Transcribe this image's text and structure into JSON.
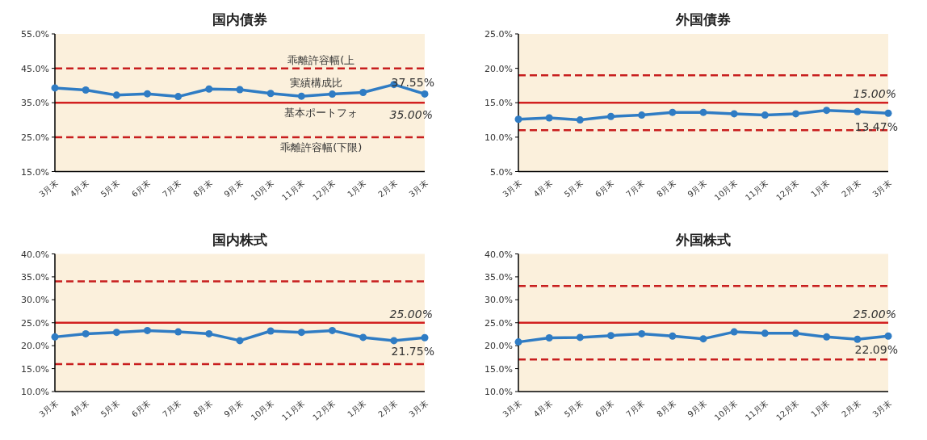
{
  "chart_data": [
    {
      "type": "line",
      "title": "国内債券",
      "categories": [
        "3月末",
        "4月末",
        "5月末",
        "6月末",
        "7月末",
        "8月末",
        "9月末",
        "10月末",
        "11月末",
        "12月末",
        "1月末",
        "2月末",
        "3月末"
      ],
      "series": [
        {
          "name": "実績構成比",
          "color": "#2f7cc4",
          "values": [
            39.3,
            38.7,
            37.2,
            37.6,
            36.8,
            39.0,
            38.8,
            37.7,
            36.9,
            37.5,
            38.0,
            40.3,
            37.55
          ],
          "value_labels": [
            null,
            null,
            null,
            null,
            null,
            null,
            null,
            null,
            null,
            null,
            null,
            null,
            "37.55%"
          ]
        }
      ],
      "ylim": [
        15,
        55
      ],
      "yticks": [
        {
          "value": 15,
          "label": "15.0%"
        },
        {
          "value": 25,
          "label": "25.0%"
        },
        {
          "value": 35,
          "label": "35.0%"
        },
        {
          "value": 45,
          "label": "45.0%"
        },
        {
          "value": 55,
          "label": "55.0%"
        }
      ],
      "ref_lines": [
        {
          "axis": "y",
          "value": 45,
          "label": "乖離許容幅(上",
          "color": "#c81e1e",
          "line_style": "dashed"
        },
        {
          "axis": "y",
          "value": 35,
          "label": "基本ポートフォ",
          "color": "#d22020",
          "line_style": "solid"
        },
        {
          "axis": "y",
          "value": 25,
          "label": "乖離許容幅(下限)",
          "color": "#c81e1e",
          "line_style": "dashed"
        }
      ],
      "annotations": [
        {
          "text": "35.00%",
          "y": 35
        }
      ],
      "marker": "circle"
    },
    {
      "type": "line",
      "title": "外国債券",
      "categories": [
        "3月末",
        "4月末",
        "5月末",
        "6月末",
        "7月末",
        "8月末",
        "9月末",
        "10月末",
        "11月末",
        "12月末",
        "1月末",
        "2月末",
        "3月末"
      ],
      "series": [
        {
          "color": "#2f7cc4",
          "values": [
            12.6,
            12.8,
            12.5,
            13.0,
            13.2,
            13.6,
            13.6,
            13.4,
            13.2,
            13.4,
            13.9,
            13.7,
            13.47
          ],
          "value_labels": [
            null,
            null,
            null,
            null,
            null,
            null,
            null,
            null,
            null,
            null,
            null,
            null,
            "13.47%"
          ]
        }
      ],
      "ylim": [
        5,
        25
      ],
      "yticks": [
        {
          "value": 5,
          "label": "5.0%"
        },
        {
          "value": 10,
          "label": "10.0%"
        },
        {
          "value": 15,
          "label": "15.0%"
        },
        {
          "value": 20,
          "label": "20.0%"
        },
        {
          "value": 25,
          "label": "25.0%"
        }
      ],
      "ref_lines": [
        {
          "axis": "y",
          "value": 19,
          "color": "#c81e1e",
          "line_style": "dashed"
        },
        {
          "axis": "y",
          "value": 15,
          "label": "15.00%",
          "color": "#d22020",
          "line_style": "solid"
        },
        {
          "axis": "y",
          "value": 11,
          "color": "#c81e1e",
          "line_style": "dashed"
        }
      ],
      "marker": "circle"
    },
    {
      "type": "line",
      "title": "国内株式",
      "categories": [
        "3月末",
        "4月末",
        "5月末",
        "6月末",
        "7月末",
        "8月末",
        "9月末",
        "10月末",
        "11月末",
        "12月末",
        "1月末",
        "2月末",
        "3月末"
      ],
      "series": [
        {
          "color": "#2f7cc4",
          "values": [
            21.9,
            22.6,
            22.9,
            23.3,
            23.0,
            22.6,
            21.1,
            23.2,
            22.9,
            23.3,
            21.8,
            21.1,
            21.75
          ],
          "value_labels": [
            null,
            null,
            null,
            null,
            null,
            null,
            null,
            null,
            null,
            null,
            null,
            null,
            "21.75%"
          ]
        }
      ],
      "ylim": [
        10,
        40
      ],
      "yticks": [
        {
          "value": 10,
          "label": "10.0%"
        },
        {
          "value": 15,
          "label": "15.0%"
        },
        {
          "value": 20,
          "label": "20.0%"
        },
        {
          "value": 25,
          "label": "25.0%"
        },
        {
          "value": 30,
          "label": "30.0%"
        },
        {
          "value": 35,
          "label": "35.0%"
        },
        {
          "value": 40,
          "label": "40.0%"
        }
      ],
      "ref_lines": [
        {
          "axis": "y",
          "value": 34,
          "color": "#c81e1e",
          "line_style": "dashed"
        },
        {
          "axis": "y",
          "value": 25,
          "label": "25.00%",
          "color": "#d22020",
          "line_style": "solid"
        },
        {
          "axis": "y",
          "value": 16,
          "color": "#c81e1e",
          "line_style": "dashed"
        }
      ],
      "marker": "circle"
    },
    {
      "type": "line",
      "title": "外国株式",
      "categories": [
        "3月末",
        "4月末",
        "5月末",
        "6月末",
        "7月末",
        "8月末",
        "9月末",
        "10月末",
        "11月末",
        "12月末",
        "1月末",
        "2月末",
        "3月末"
      ],
      "series": [
        {
          "color": "#2f7cc4",
          "values": [
            20.8,
            21.7,
            21.8,
            22.2,
            22.6,
            22.1,
            21.5,
            23.0,
            22.7,
            22.7,
            21.9,
            21.4,
            22.09
          ],
          "value_labels": [
            null,
            null,
            null,
            null,
            null,
            null,
            null,
            null,
            null,
            null,
            null,
            null,
            "22.09%"
          ]
        }
      ],
      "ylim": [
        10,
        40
      ],
      "yticks": [
        {
          "value": 10,
          "label": "10.0%"
        },
        {
          "value": 15,
          "label": "15.0%"
        },
        {
          "value": 20,
          "label": "20.0%"
        },
        {
          "value": 25,
          "label": "25.0%"
        },
        {
          "value": 30,
          "label": "30.0%"
        },
        {
          "value": 35,
          "label": "35.0%"
        },
        {
          "value": 40,
          "label": "40.0%"
        }
      ],
      "ref_lines": [
        {
          "axis": "y",
          "value": 33,
          "color": "#c81e1e",
          "line_style": "dashed"
        },
        {
          "axis": "y",
          "value": 25,
          "label": "25.00%",
          "color": "#d22020",
          "line_style": "solid"
        },
        {
          "axis": "y",
          "value": 17,
          "color": "#c81e1e",
          "line_style": "dashed"
        }
      ],
      "marker": "circle"
    }
  ]
}
